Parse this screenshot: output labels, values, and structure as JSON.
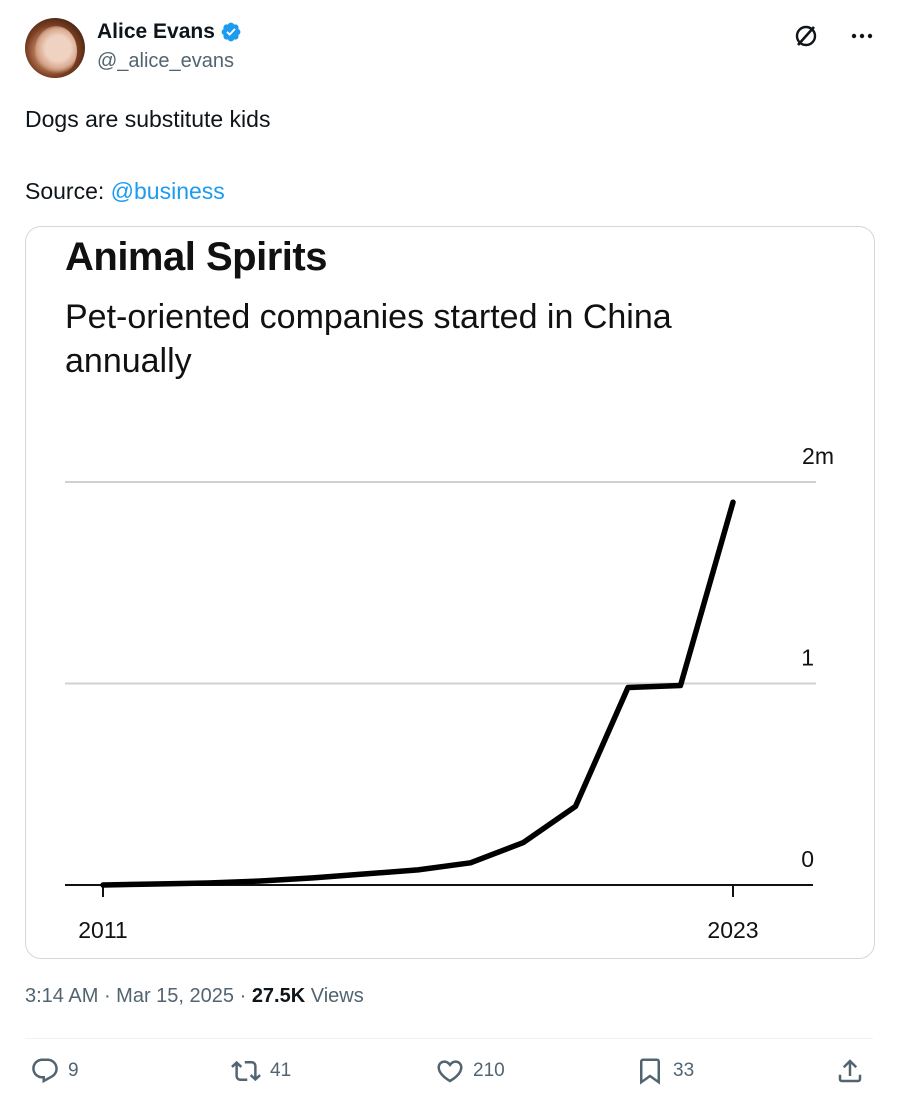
{
  "author": {
    "name": "Alice Evans",
    "handle": "@_alice_evans",
    "verified": true,
    "verified_color": "#1d9bf0"
  },
  "tweet": {
    "text": "Dogs are substitute kids",
    "source_prefix": "Source: ",
    "source_mention": "@business"
  },
  "chart_data": {
    "type": "line",
    "title": "Animal Spirits",
    "subtitle": "Pet-oriented companies started in China annually",
    "x": [
      2011,
      2012,
      2013,
      2014,
      2015,
      2016,
      2017,
      2018,
      2019,
      2020,
      2021,
      2022,
      2023
    ],
    "series": [
      {
        "values": [
          0.0,
          0.005,
          0.01,
          0.02,
          0.035,
          0.055,
          0.075,
          0.11,
          0.21,
          0.39,
          0.98,
          0.99,
          1.9
        ]
      }
    ],
    "x_tick_labels": [
      "2011",
      "2023"
    ],
    "y_tick_labels": [
      "2m",
      "1",
      "0"
    ],
    "y_ticks": [
      2,
      1,
      0
    ],
    "ylim": [
      0,
      2
    ],
    "grid": true,
    "line_color": "#000000"
  },
  "meta": {
    "time": "3:14 AM",
    "separator": " · ",
    "date": "Mar 15, 2025",
    "views_count": "27.5K",
    "views_label": " Views"
  },
  "actions": {
    "replies": "9",
    "reposts": "41",
    "likes": "210",
    "bookmarks": "33"
  },
  "icons": {
    "verified": "verified-badge-icon",
    "grok": "grok-icon",
    "more": "more-icon",
    "reply": "reply-icon",
    "repost": "repost-icon",
    "like": "heart-icon",
    "bookmark": "bookmark-icon",
    "share": "share-icon"
  }
}
